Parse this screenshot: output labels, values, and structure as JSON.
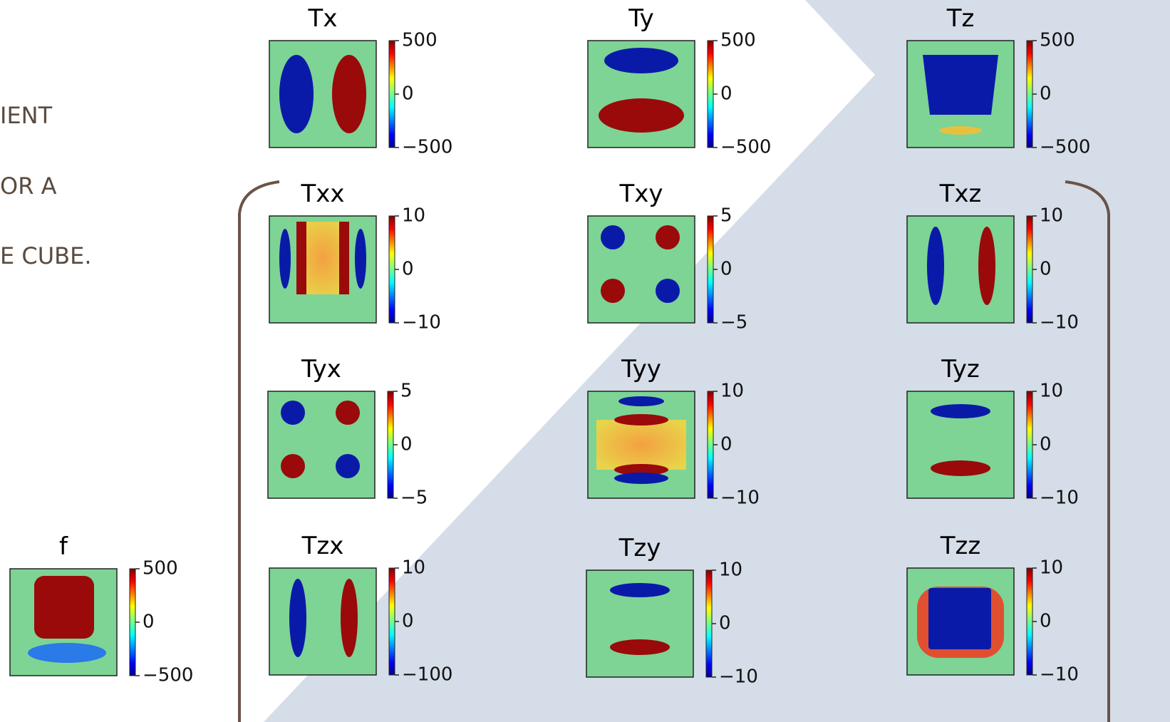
{
  "side_text": [
    "IENT",
    "OR A",
    "E CUBE."
  ],
  "panels": [
    {
      "title": "f",
      "ticks": [
        "500",
        "0",
        "−500"
      ]
    },
    {
      "title": "Tx",
      "ticks": [
        "500",
        "0",
        "−500"
      ]
    },
    {
      "title": "Ty",
      "ticks": [
        "500",
        "0",
        "−500"
      ]
    },
    {
      "title": "Tz",
      "ticks": [
        "500",
        "0",
        "−500"
      ]
    },
    {
      "title": "Txx",
      "ticks": [
        "10",
        "0",
        "−10"
      ]
    },
    {
      "title": "Txy",
      "ticks": [
        "5",
        "0",
        "−5"
      ]
    },
    {
      "title": "Txz",
      "ticks": [
        "10",
        "0",
        "−10"
      ]
    },
    {
      "title": "Tyx",
      "ticks": [
        "5",
        "0",
        "−5"
      ]
    },
    {
      "title": "Tyy",
      "ticks": [
        "10",
        "0",
        "−10"
      ]
    },
    {
      "title": "Tyz",
      "ticks": [
        "10",
        "0",
        "−10"
      ]
    },
    {
      "title": "Tzx",
      "ticks": [
        "10",
        "0",
        "−100"
      ]
    },
    {
      "title": "Tzy",
      "ticks": [
        "10",
        "0",
        "−10"
      ]
    },
    {
      "title": "Tzz",
      "ticks": [
        "10",
        "0",
        "−10"
      ]
    }
  ]
}
